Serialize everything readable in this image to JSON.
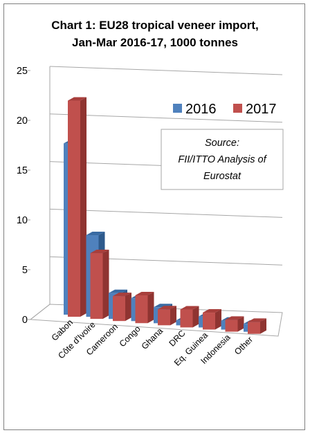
{
  "chart_data": {
    "type": "bar",
    "title_lines": [
      "Chart 1: EU28 tropical veneer import,",
      "Jan-Mar 2016-17, 1000 tonnes"
    ],
    "categories": [
      "Gabon",
      "Côte d'Ivoire",
      "Cameroon",
      "Congo",
      "Ghana",
      "DRC",
      "Eq. Guinea",
      "Indonesia",
      "Other"
    ],
    "series": [
      {
        "name": "2016",
        "values": [
          17.2,
          8.2,
          2.6,
          2.3,
          1.6,
          0.5,
          1.1,
          0.9,
          0.8
        ],
        "color": "#4f81bd",
        "top_color": "#3a6ba3",
        "side_color": "#2e5a8c"
      },
      {
        "name": "2017",
        "values": [
          21.7,
          6.6,
          2.5,
          2.8,
          1.6,
          1.8,
          1.7,
          1.2,
          1.2
        ],
        "color": "#c0504d",
        "top_color": "#a83f3c",
        "side_color": "#8f3431"
      }
    ],
    "ylim": [
      0,
      25
    ],
    "yticks": [
      "0",
      "5",
      "10",
      "15",
      "20",
      "25"
    ],
    "grid": true,
    "legend_position": "top-right",
    "annotation_lines": [
      "Source:",
      "FII/ITTO Analysis of",
      "Eurostat"
    ]
  }
}
